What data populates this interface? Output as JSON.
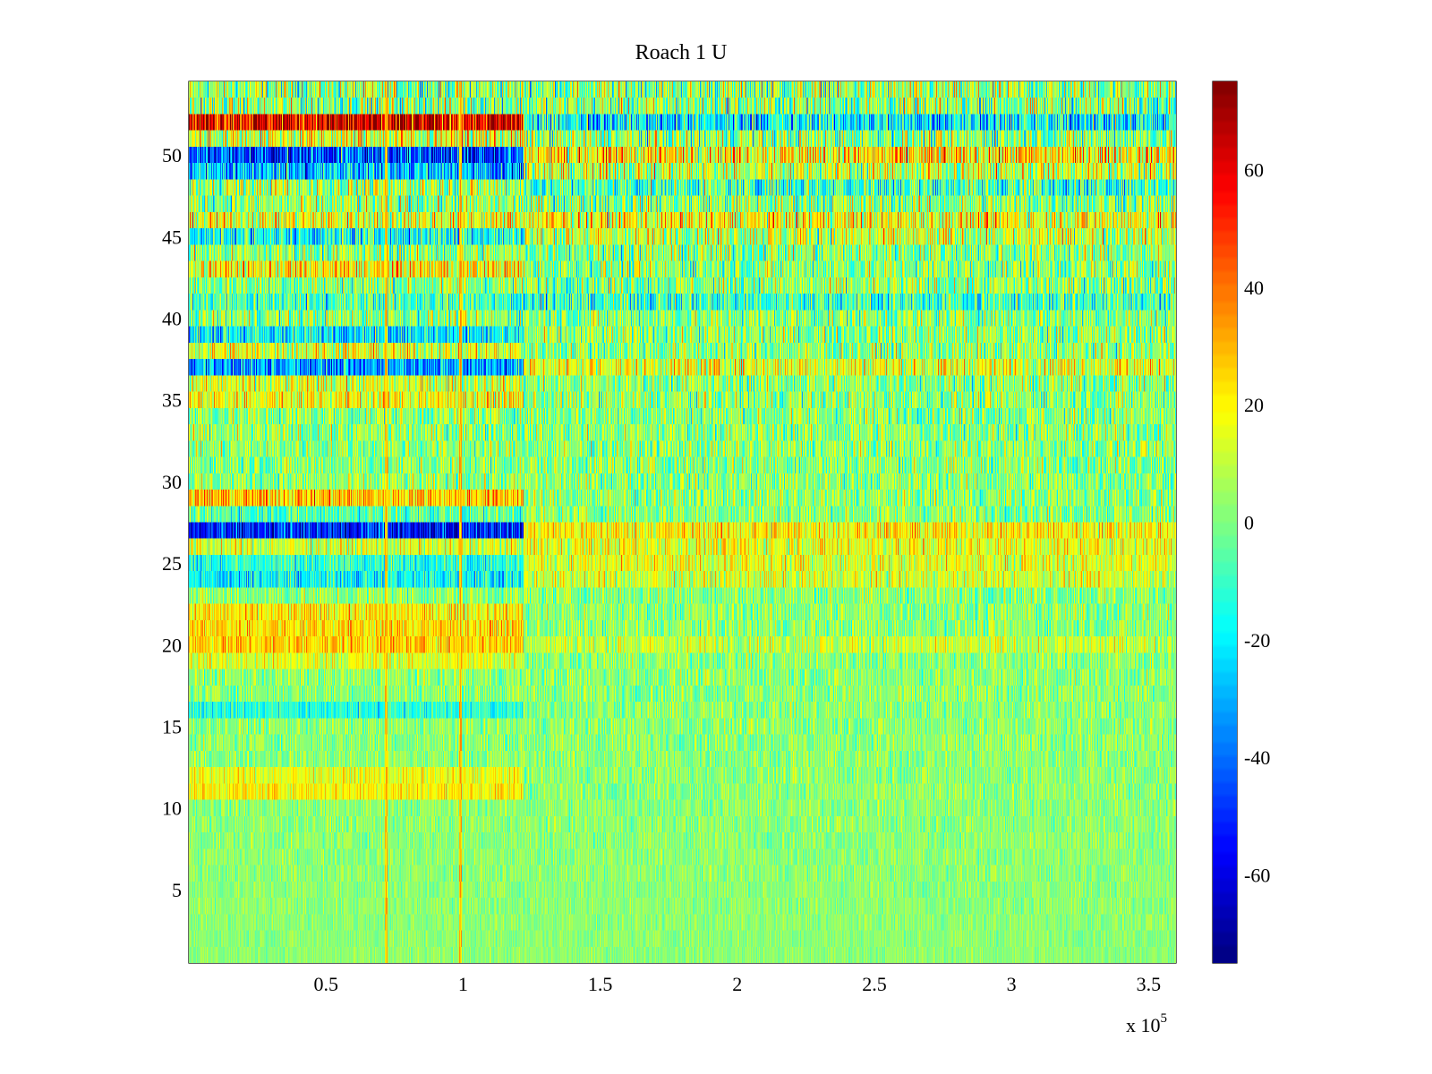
{
  "chart_data": {
    "type": "heatmap",
    "title": "Roach 1 U",
    "xlabel": "",
    "ylabel": "",
    "x_multiplier_label": {
      "base": "x 10",
      "exponent": "5"
    },
    "xlim": [
      0,
      3.6
    ],
    "ylim": [
      0.5,
      54.5
    ],
    "x_ticks": [
      0.5,
      1,
      1.5,
      2,
      2.5,
      3,
      3.5
    ],
    "x_tick_labels": [
      "0.5",
      "1",
      "1.5",
      "2",
      "2.5",
      "3",
      "3.5"
    ],
    "y_ticks": [
      5,
      10,
      15,
      20,
      25,
      30,
      35,
      40,
      45,
      50
    ],
    "y_tick_labels": [
      "5",
      "10",
      "15",
      "20",
      "25",
      "30",
      "35",
      "40",
      "45",
      "50"
    ],
    "colormap": "jet",
    "clim": [
      -75,
      75
    ],
    "colorbar_ticks": [
      -60,
      -40,
      -20,
      0,
      20,
      40,
      60
    ],
    "colorbar_tick_labels": [
      "-60",
      "-40",
      "-20",
      "0",
      "20",
      "40",
      "60"
    ],
    "rows": 54,
    "time_segments": [
      {
        "x_range": [
          0,
          1.22
        ],
        "row_offsets": {
          "52": 58,
          "51": 12,
          "50": -48,
          "49": -30,
          "48": 5,
          "46": 14,
          "45": -18,
          "43": 18,
          "41": -10,
          "39": -22,
          "38": 12,
          "37": -34,
          "36": 10,
          "35": 16,
          "29": 26,
          "28": -8,
          "27": -55,
          "26": 10,
          "25": -14,
          "24": -20,
          "22": 18,
          "21": 22,
          "20": 24,
          "19": 12,
          "16": -16,
          "12": 14,
          "11": 18
        }
      },
      {
        "x_range": [
          1.22,
          3.6
        ],
        "row_offsets": {
          "52": -22,
          "50": 20,
          "49": 8,
          "48": -10,
          "46": 16,
          "45": 8,
          "41": -12,
          "37": 14,
          "27": 18,
          "26": 14,
          "25": 12,
          "24": 10,
          "20": 8
        }
      }
    ],
    "vertical_lines": [
      {
        "x": 0.72,
        "value": 30
      },
      {
        "x": 0.99,
        "value": 32
      }
    ],
    "noise_amplitude": {
      "row_1": 4,
      "row_54": 18
    }
  }
}
